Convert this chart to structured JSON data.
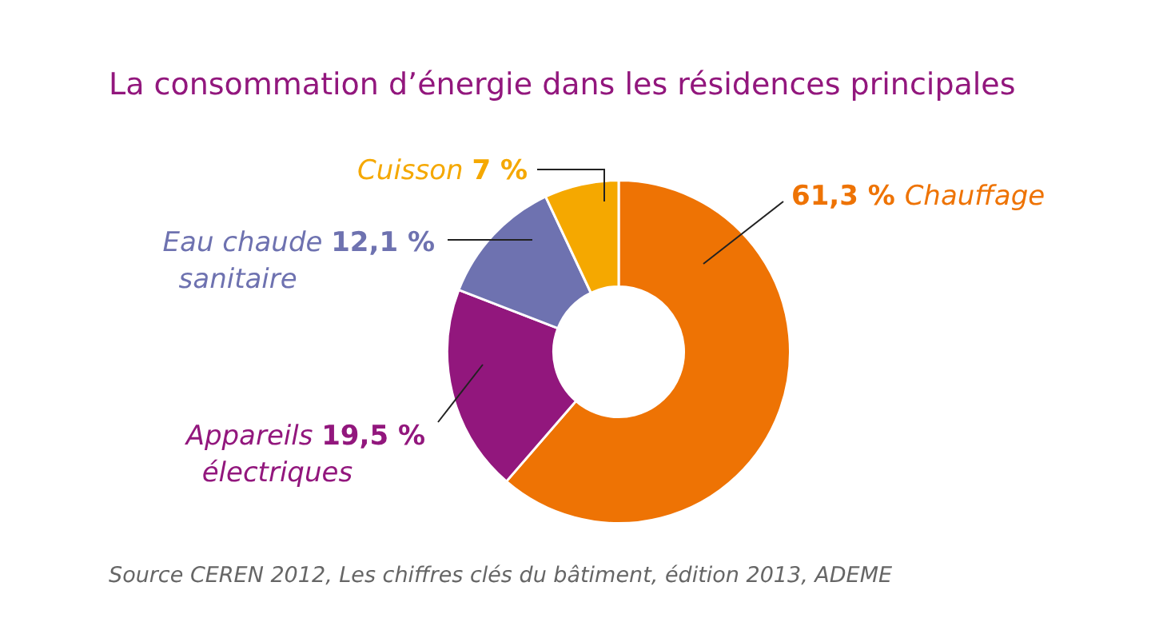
{
  "chart_data": {
    "type": "donut",
    "title": "La consommation d’énergie dans les résidences principales",
    "categories": [
      "Chauffage",
      "Appareils électriques",
      "Eau chaude sanitaire",
      "Cuisson"
    ],
    "values": [
      61.3,
      19.5,
      12.1,
      7
    ],
    "colors": [
      "#ee7304",
      "#92177d",
      "#6e72b0",
      "#f5a800"
    ],
    "value_labels": [
      "61,3 %",
      "19,5 %",
      "12,1 %",
      "7 %"
    ],
    "legend": false,
    "annotations": [
      "Source CEREN 2012, Les chiffres clés du bâtiment, édition 2013, ADEME"
    ]
  }
}
